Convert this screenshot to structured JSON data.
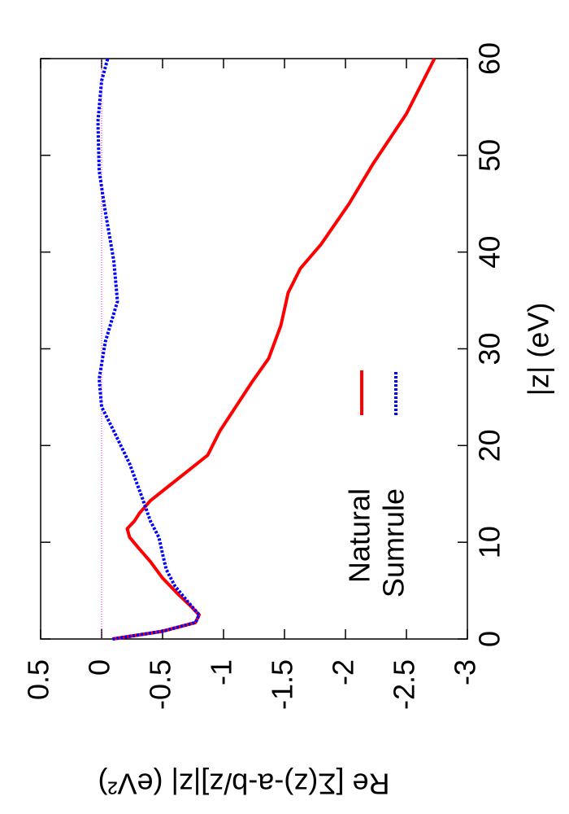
{
  "chart_data": {
    "type": "line",
    "x_label": "|z| (eV)",
    "y_label": "Re [Σ(z)-a-b/z]|z| (eV²)",
    "xlim": [
      0,
      60
    ],
    "xticks": [
      0,
      10,
      20,
      30,
      40,
      50,
      60
    ],
    "ylim": [
      -3,
      0.5
    ],
    "yticks": [
      0.5,
      0,
      -0.5,
      -1,
      -1.5,
      -2,
      -2.5,
      -3
    ],
    "reference_line": {
      "value": 0,
      "color": "#ff00ff"
    },
    "legend": "bottom-center",
    "series": [
      {
        "name": "Natural",
        "color": "#ff0000",
        "dash": "solid",
        "x": [
          0,
          0.8,
          1.7,
          2.5,
          3.4,
          4.6,
          6.3,
          8,
          9.3,
          10.5,
          11.4,
          12.2,
          13,
          14.3,
          15.6,
          17.3,
          19,
          21.5,
          24,
          26.5,
          29,
          32.4,
          35.8,
          38.3,
          40.8,
          45,
          49.2,
          54.3,
          60
        ],
        "values": [
          -0.09,
          -0.5,
          -0.77,
          -0.8,
          -0.73,
          -0.63,
          -0.5,
          -0.4,
          -0.31,
          -0.23,
          -0.21,
          -0.27,
          -0.31,
          -0.4,
          -0.53,
          -0.7,
          -0.87,
          -0.97,
          -1.1,
          -1.23,
          -1.37,
          -1.47,
          -1.53,
          -1.63,
          -1.8,
          -2.03,
          -2.23,
          -2.5,
          -2.73
        ]
      },
      {
        "name": "Sumrule",
        "color": "#0000ff",
        "dash": "dotted",
        "x": [
          0,
          0.8,
          1.7,
          2.5,
          3.8,
          5.5,
          7.2,
          8.8,
          10.5,
          12.2,
          14.7,
          18.1,
          21.5,
          24,
          26.9,
          30.7,
          34.9,
          39.1,
          44.2,
          48.4,
          53.5,
          57.7,
          60
        ],
        "values": [
          -0.09,
          -0.5,
          -0.77,
          -0.8,
          -0.71,
          -0.6,
          -0.53,
          -0.5,
          -0.47,
          -0.4,
          -0.33,
          -0.23,
          -0.1,
          0,
          0.02,
          -0.03,
          -0.13,
          -0.1,
          -0.03,
          0.02,
          0.03,
          0,
          -0.05
        ]
      }
    ]
  }
}
